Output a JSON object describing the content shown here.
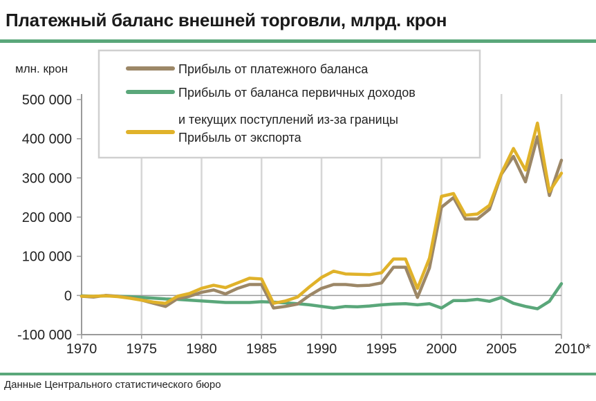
{
  "title": "Платежный баланс внешней торговли, млрд. крон",
  "source": "Данные Центрального статистического бюро",
  "chart_data": {
    "type": "line",
    "ylabel": "млн. крон",
    "ylim": [
      -100000,
      500000
    ],
    "xlim": [
      1970,
      2010
    ],
    "yticks": [
      500000,
      400000,
      300000,
      200000,
      100000,
      0,
      -100000
    ],
    "ytick_labels": [
      "500 000",
      "400 000",
      "300 000",
      "200 000",
      "100 000",
      "0",
      "-100 000"
    ],
    "xticks": [
      1970,
      1975,
      1980,
      1985,
      1990,
      1995,
      2000,
      2005,
      2010
    ],
    "xtick_labels": [
      "1970",
      "1975",
      "1980",
      "1985",
      "1990",
      "1995",
      "2000",
      "2005",
      "2010*"
    ],
    "grid": "vertical",
    "legend_position": "top-left",
    "x": [
      1970,
      1971,
      1972,
      1973,
      1974,
      1975,
      1976,
      1977,
      1978,
      1979,
      1980,
      1981,
      1982,
      1983,
      1984,
      1985,
      1986,
      1987,
      1988,
      1989,
      1990,
      1991,
      1992,
      1993,
      1994,
      1995,
      1996,
      1997,
      1998,
      1999,
      2000,
      2001,
      2002,
      2003,
      2004,
      2005,
      2006,
      2007,
      2008,
      2009,
      2010
    ],
    "series": [
      {
        "name": "Прибыль от платежного баланса",
        "color": "#9c8767",
        "values": [
          -2000,
          -4000,
          0,
          -2000,
          -6000,
          -12000,
          -20000,
          -28000,
          -8000,
          -2000,
          8000,
          14000,
          4000,
          18000,
          28000,
          28000,
          -32000,
          -28000,
          -22000,
          0,
          18000,
          28000,
          28000,
          25000,
          26000,
          32000,
          72000,
          72000,
          -5000,
          70000,
          225000,
          250000,
          195000,
          195000,
          220000,
          310000,
          355000,
          290000,
          405000,
          255000,
          345000
        ]
      },
      {
        "name": "Прибыль от баланса первичных доходов и текущих поступлений из-за границы",
        "color": "#5aa77a",
        "values": [
          -1000,
          -2000,
          -1000,
          -2000,
          -3000,
          -5000,
          -7000,
          -9000,
          -10000,
          -12000,
          -14000,
          -16000,
          -18000,
          -18000,
          -18000,
          -16000,
          -17000,
          -19000,
          -21000,
          -24000,
          -28000,
          -32000,
          -28000,
          -29000,
          -27000,
          -24000,
          -22000,
          -21000,
          -24000,
          -21000,
          -32000,
          -13000,
          -13000,
          -10000,
          -15000,
          -5000,
          -20000,
          -28000,
          -34000,
          -15000,
          30000
        ]
      },
      {
        "name": "Прибыль от экспорта",
        "color": "#e0b22a",
        "values": [
          -2000,
          -2000,
          -1000,
          -3000,
          -7000,
          -12000,
          -17000,
          -20000,
          -2000,
          5000,
          18000,
          26000,
          20000,
          32000,
          44000,
          42000,
          -20000,
          -14000,
          -4000,
          22000,
          46000,
          62000,
          55000,
          54000,
          53000,
          58000,
          93000,
          93000,
          18000,
          95000,
          253000,
          260000,
          205000,
          208000,
          230000,
          312000,
          375000,
          320000,
          440000,
          265000,
          312000
        ]
      }
    ]
  },
  "legend": {
    "item1": "Прибыль от платежного баланса",
    "item2_line1": "Прибыль от баланса первичных доходов",
    "item2_line2": "и текущих поступлений из-за границы",
    "item3": "Прибыль от экспорта"
  }
}
